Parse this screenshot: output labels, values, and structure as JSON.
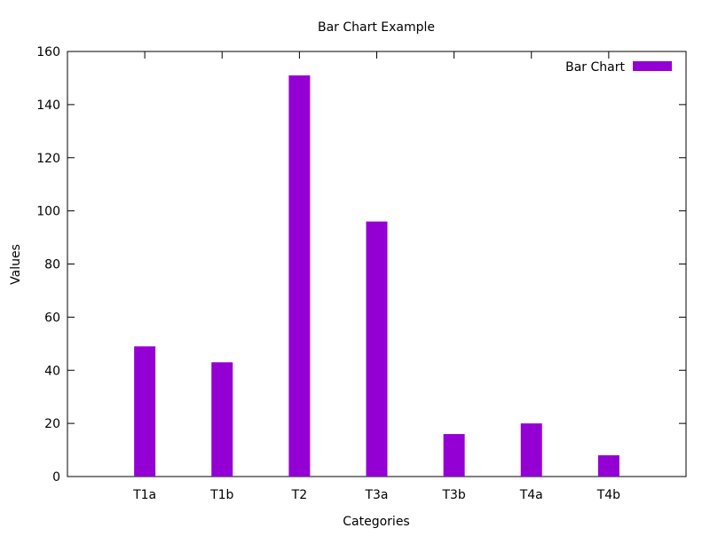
{
  "chart_data": {
    "type": "bar",
    "title": "Bar Chart Example",
    "xlabel": "Categories",
    "ylabel": "Values",
    "categories": [
      "T1a",
      "T1b",
      "T2",
      "T3a",
      "T3b",
      "T4a",
      "T4b"
    ],
    "series": [
      {
        "name": "Bar Chart",
        "values": [
          49,
          43,
          151,
          96,
          16,
          20,
          8
        ]
      }
    ],
    "ylim": [
      0,
      160
    ],
    "yticks": [
      0,
      20,
      40,
      60,
      80,
      100,
      120,
      140,
      160
    ],
    "grid": false,
    "legend_position": "top-right",
    "bar_color": "#9400d3"
  }
}
